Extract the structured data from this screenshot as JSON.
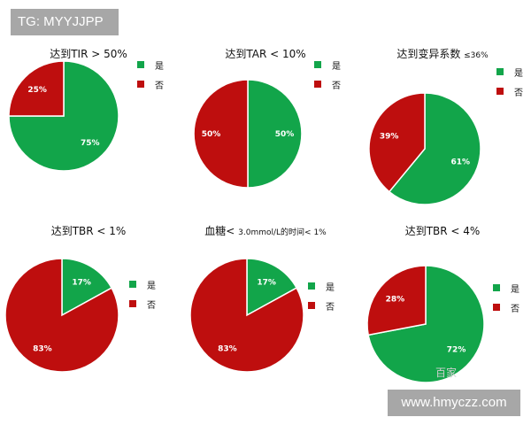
{
  "header": {
    "tag": "TG: MYYJJPP"
  },
  "colors": {
    "yes": "#12a54a",
    "no": "#be0e0e"
  },
  "legend": {
    "yes": "是",
    "no": "否"
  },
  "chart_data": [
    {
      "type": "pie",
      "title": "达到TIR > 50%",
      "title_suffix": "",
      "categories": [
        "是",
        "否"
      ],
      "values": [
        75,
        25
      ],
      "labels": [
        "75%",
        "25%"
      ]
    },
    {
      "type": "pie",
      "title": "达到TAR < 10%",
      "title_suffix": "",
      "categories": [
        "是",
        "否"
      ],
      "values": [
        50,
        50
      ],
      "labels": [
        "50%",
        "50%"
      ]
    },
    {
      "type": "pie",
      "title": "达到变异系数 ",
      "title_suffix": "≤36%",
      "categories": [
        "是",
        "否"
      ],
      "values": [
        61,
        39
      ],
      "labels": [
        "61%",
        "39%"
      ]
    },
    {
      "type": "pie",
      "title": "达到TBR < 1%",
      "title_suffix": "",
      "categories": [
        "是",
        "否"
      ],
      "values": [
        17,
        83
      ],
      "labels": [
        "17%",
        "83%"
      ]
    },
    {
      "type": "pie",
      "title": "血糖< ",
      "title_suffix": "3.0mmol/L的时间< 1%",
      "categories": [
        "是",
        "否"
      ],
      "values": [
        17,
        83
      ],
      "labels": [
        "17%",
        "83%"
      ]
    },
    {
      "type": "pie",
      "title": "达到TBR < 4%",
      "title_suffix": "",
      "categories": [
        "是",
        "否"
      ],
      "values": [
        72,
        28
      ],
      "labels": [
        "72%",
        "28%"
      ]
    }
  ],
  "watermark": {
    "text": "www.hmyczz.com",
    "faint": "百家"
  }
}
